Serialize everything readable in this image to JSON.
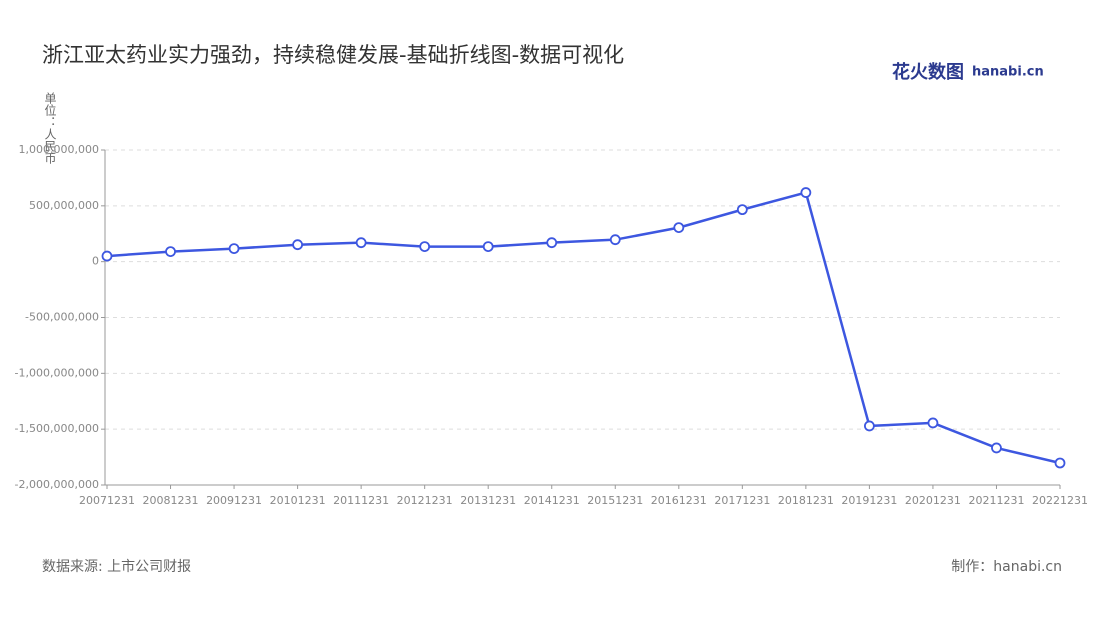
{
  "chart_data": {
    "type": "line",
    "title": "浙江亚太药业实力强劲，持续稳健发展-基础折线图-数据可视化",
    "y_label": "单位：人民币",
    "logo": "花火数图",
    "logo_sub": "hanabi.cn",
    "source": "数据来源: 上市公司财报",
    "credit": "制作：hanabi.cn",
    "categories": [
      "20071231",
      "20081231",
      "20091231",
      "20101231",
      "20111231",
      "20121231",
      "20131231",
      "20141231",
      "20151231",
      "20161231",
      "20171231",
      "20181231",
      "20191231",
      "20201231",
      "20211231",
      "20221231"
    ],
    "series": [
      {
        "color": "#3d57e0",
        "values": [
          50000000,
          90000000,
          117000000,
          152000000,
          170000000,
          135000000,
          135000000,
          170000000,
          197000000,
          305000000,
          466000000,
          619000000,
          -1471000000,
          -1444000000,
          -1668000000,
          -1803000000
        ]
      }
    ],
    "ylim": [
      -2000000000,
      1000000000
    ],
    "yticks": [
      {
        "value": -2000000000,
        "label": "-2,000,000,000"
      },
      {
        "value": -1500000000,
        "label": "-1,500,000,000"
      },
      {
        "value": -1000000000,
        "label": "-1,000,000,000"
      },
      {
        "value": -500000000,
        "label": "-500,000,000"
      },
      0,
      {
        "value": 500000000,
        "label": "500,000,000"
      },
      {
        "value": 1000000000,
        "label": "1,000,000,000"
      }
    ],
    "grid": true
  }
}
